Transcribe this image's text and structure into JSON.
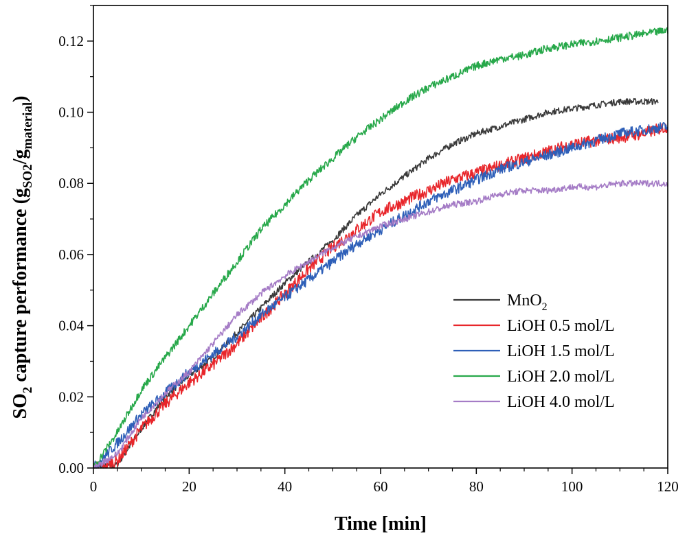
{
  "chart_data": {
    "type": "line",
    "title": "",
    "xlabel": "Time [min]",
    "ylabel": {
      "main": "SO",
      "sub": "2",
      "rest": " capture performance (g",
      "sub2": "SO2",
      "slash": "/g",
      "sub3": "material",
      "close": ")"
    },
    "xlim": [
      0,
      120
    ],
    "ylim": [
      0,
      0.13
    ],
    "xticks": [
      0,
      20,
      40,
      60,
      80,
      100,
      120
    ],
    "xtick_labels": [
      "0",
      "20",
      "40",
      "60",
      "80",
      "100",
      "120"
    ],
    "yticks": [
      0,
      0.02,
      0.04,
      0.06,
      0.08,
      0.1,
      0.12
    ],
    "ytick_labels": [
      "0.00",
      "0.02",
      "0.04",
      "0.06",
      "0.08",
      "0.10",
      "0.12"
    ],
    "legend_position": "bottom-right",
    "series": [
      {
        "name": "MnO2",
        "label_main": "MnO",
        "label_sub": "2",
        "color": "#3a3a3a",
        "x": [
          0,
          5,
          10,
          15,
          20,
          25,
          30,
          35,
          40,
          45,
          50,
          55,
          60,
          65,
          70,
          75,
          80,
          85,
          90,
          95,
          100,
          105,
          110,
          115,
          118
        ],
        "y": [
          0.0,
          0.001,
          0.011,
          0.02,
          0.026,
          0.031,
          0.038,
          0.045,
          0.052,
          0.058,
          0.064,
          0.071,
          0.077,
          0.082,
          0.087,
          0.091,
          0.094,
          0.096,
          0.098,
          0.1,
          0.101,
          0.102,
          0.103,
          0.103,
          0.103
        ]
      },
      {
        "name": "LiOH 0.5 mol/L",
        "label_main": "LiOH 0.5 mol/L",
        "label_sub": "",
        "color": "#e8262b",
        "x": [
          0,
          5,
          10,
          15,
          20,
          25,
          30,
          35,
          40,
          45,
          50,
          55,
          60,
          65,
          70,
          75,
          80,
          85,
          90,
          95,
          100,
          105,
          110,
          115,
          120
        ],
        "y": [
          0.0,
          0.002,
          0.011,
          0.018,
          0.024,
          0.029,
          0.035,
          0.042,
          0.049,
          0.056,
          0.062,
          0.067,
          0.072,
          0.075,
          0.078,
          0.081,
          0.083,
          0.085,
          0.087,
          0.089,
          0.091,
          0.092,
          0.093,
          0.094,
          0.096
        ]
      },
      {
        "name": "LiOH 1.5 mol/L",
        "label_main": "LiOH 1.5 mol/L",
        "label_sub": "",
        "color": "#2e5fb8",
        "x": [
          0,
          5,
          10,
          15,
          20,
          25,
          30,
          35,
          40,
          45,
          50,
          55,
          60,
          65,
          70,
          75,
          80,
          85,
          90,
          95,
          100,
          105,
          110,
          115,
          120
        ],
        "y": [
          0.0,
          0.007,
          0.015,
          0.021,
          0.027,
          0.032,
          0.037,
          0.043,
          0.048,
          0.053,
          0.058,
          0.063,
          0.067,
          0.071,
          0.075,
          0.078,
          0.081,
          0.084,
          0.086,
          0.088,
          0.09,
          0.092,
          0.094,
          0.095,
          0.096
        ]
      },
      {
        "name": "LiOH 2.0 mol/L",
        "label_main": "LiOH 2.0 mol/L",
        "label_sub": "",
        "color": "#27a84a",
        "x": [
          0,
          5,
          10,
          15,
          20,
          25,
          30,
          35,
          40,
          45,
          50,
          55,
          60,
          65,
          70,
          75,
          80,
          85,
          90,
          95,
          100,
          105,
          110,
          115,
          120
        ],
        "y": [
          0.0,
          0.01,
          0.022,
          0.031,
          0.04,
          0.049,
          0.058,
          0.067,
          0.074,
          0.081,
          0.087,
          0.093,
          0.098,
          0.103,
          0.107,
          0.11,
          0.113,
          0.115,
          0.116,
          0.118,
          0.119,
          0.12,
          0.121,
          0.122,
          0.123
        ]
      },
      {
        "name": "LiOH 4.0 mol/L",
        "label_main": "LiOH 4.0 mol/L",
        "label_sub": "",
        "color": "#a57cc6",
        "x": [
          0,
          5,
          10,
          15,
          20,
          25,
          30,
          35,
          40,
          45,
          50,
          55,
          60,
          65,
          70,
          75,
          80,
          85,
          90,
          95,
          100,
          105,
          110,
          115,
          120
        ],
        "y": [
          0.0,
          0.004,
          0.014,
          0.021,
          0.027,
          0.035,
          0.043,
          0.049,
          0.054,
          0.058,
          0.062,
          0.065,
          0.068,
          0.07,
          0.072,
          0.074,
          0.075,
          0.077,
          0.078,
          0.078,
          0.079,
          0.079,
          0.08,
          0.08,
          0.08
        ]
      }
    ]
  }
}
